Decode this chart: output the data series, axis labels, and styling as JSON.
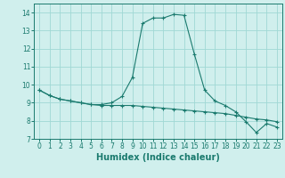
{
  "xlabel": "Humidex (Indice chaleur)",
  "x": [
    0,
    1,
    2,
    3,
    4,
    5,
    6,
    7,
    8,
    9,
    10,
    11,
    12,
    13,
    14,
    15,
    16,
    17,
    18,
    19,
    20,
    21,
    22,
    23
  ],
  "line1": [
    9.7,
    9.4,
    9.2,
    9.1,
    9.0,
    8.9,
    8.9,
    9.0,
    9.35,
    10.4,
    13.4,
    13.7,
    13.7,
    13.9,
    13.85,
    11.7,
    9.7,
    9.1,
    8.85,
    8.5,
    7.95,
    7.35,
    7.85,
    7.65
  ],
  "line2": [
    9.7,
    9.4,
    9.2,
    9.1,
    9.0,
    8.9,
    8.85,
    8.85,
    8.85,
    8.85,
    8.8,
    8.75,
    8.7,
    8.65,
    8.6,
    8.55,
    8.5,
    8.45,
    8.4,
    8.3,
    8.2,
    8.1,
    8.05,
    7.95
  ],
  "line_color": "#1a7a6e",
  "bg_color": "#d0efed",
  "grid_color": "#a0d8d4",
  "xlim": [
    -0.5,
    23.5
  ],
  "ylim": [
    7,
    14.5
  ],
  "yticks": [
    7,
    8,
    9,
    10,
    11,
    12,
    13,
    14
  ],
  "xticks": [
    0,
    1,
    2,
    3,
    4,
    5,
    6,
    7,
    8,
    9,
    10,
    11,
    12,
    13,
    14,
    15,
    16,
    17,
    18,
    19,
    20,
    21,
    22,
    23
  ],
  "tick_fontsize": 5.5,
  "xlabel_fontsize": 7.0
}
